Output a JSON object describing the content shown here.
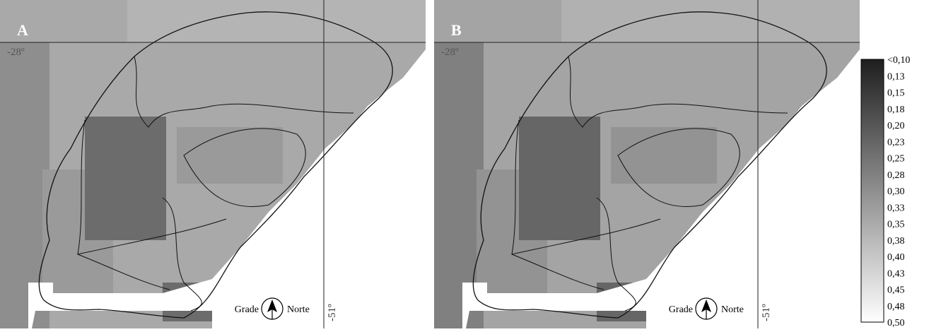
{
  "panels": [
    {
      "label": "A",
      "lat_label": "-28º",
      "lon_label": "-51º",
      "compass": {
        "left": "Grade",
        "right": "Norte"
      }
    },
    {
      "label": "B",
      "lat_label": "-28º",
      "lon_label": "-51º",
      "compass": {
        "left": "Grade",
        "right": "Norte"
      }
    }
  ],
  "legend": {
    "labels": [
      "<0,10",
      "0,13",
      "0,15",
      "0,18",
      "0,20",
      "0,23",
      "0,25",
      "0,28",
      "0,30",
      "0,33",
      "0,35",
      "0,38",
      "0,40",
      "0,43",
      "0,45",
      "0,48",
      "0,50"
    ]
  }
}
